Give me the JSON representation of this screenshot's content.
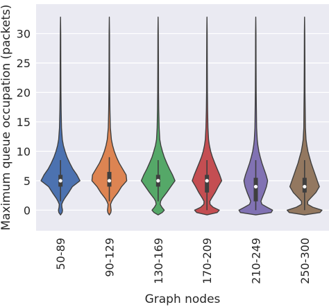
{
  "chart_data": {
    "type": "violin",
    "xlabel": "Graph nodes",
    "ylabel": "Maximum queue occupation (packets)",
    "ylim": [
      -3.5,
      35
    ],
    "y_ticks": [
      0,
      5,
      10,
      15,
      20,
      25,
      30
    ],
    "y_tick_labels": [
      "0",
      "5",
      "10",
      "15",
      "20",
      "25",
      "30"
    ],
    "grid": true,
    "background": "#eaeaf2",
    "categories": [
      "50-89",
      "90-129",
      "130-169",
      "170-209",
      "210-249",
      "250-300"
    ],
    "colors": [
      "#4c72b0",
      "#dd8452",
      "#55a868",
      "#c44e52",
      "#8172b3",
      "#937860"
    ],
    "violins": [
      {
        "category": "50-89",
        "min": -0.8,
        "max": 32.8,
        "q1": 4,
        "median": 5,
        "q3": 6,
        "whisker_low": 1.5,
        "whisker_high": 8.5,
        "density": [
          [
            -0.8,
            0.0
          ],
          [
            -0.4,
            0.08
          ],
          [
            0,
            0.1
          ],
          [
            0.5,
            0.07
          ],
          [
            1,
            0.06
          ],
          [
            1.5,
            0.12
          ],
          [
            2,
            0.2
          ],
          [
            3,
            0.4
          ],
          [
            4,
            0.58
          ],
          [
            5,
            0.95
          ],
          [
            6,
            0.8
          ],
          [
            7,
            0.6
          ],
          [
            8,
            0.45
          ],
          [
            9,
            0.32
          ],
          [
            10,
            0.22
          ],
          [
            11,
            0.14
          ],
          [
            12,
            0.09
          ],
          [
            14,
            0.05
          ],
          [
            17,
            0.03
          ],
          [
            20,
            0.02
          ],
          [
            25,
            0.015
          ],
          [
            30,
            0.01
          ],
          [
            32.8,
            0.0
          ]
        ]
      },
      {
        "category": "90-129",
        "min": -0.8,
        "max": 32.8,
        "q1": 4,
        "median": 5,
        "q3": 6.5,
        "whisker_low": 1.5,
        "whisker_high": 9,
        "density": [
          [
            -0.8,
            0.0
          ],
          [
            -0.4,
            0.07
          ],
          [
            0,
            0.09
          ],
          [
            0.5,
            0.07
          ],
          [
            1,
            0.06
          ],
          [
            1.5,
            0.12
          ],
          [
            2,
            0.2
          ],
          [
            3,
            0.42
          ],
          [
            4,
            0.6
          ],
          [
            5,
            0.85
          ],
          [
            6,
            0.82
          ],
          [
            7,
            0.65
          ],
          [
            8,
            0.48
          ],
          [
            9,
            0.35
          ],
          [
            10,
            0.24
          ],
          [
            11,
            0.16
          ],
          [
            12,
            0.1
          ],
          [
            14,
            0.05
          ],
          [
            17,
            0.03
          ],
          [
            20,
            0.02
          ],
          [
            25,
            0.015
          ],
          [
            30,
            0.01
          ],
          [
            32.8,
            0.0
          ]
        ]
      },
      {
        "category": "130-169",
        "min": -0.8,
        "max": 32.8,
        "q1": 4,
        "median": 5,
        "q3": 6,
        "whisker_low": 1.5,
        "whisker_high": 8.5,
        "density": [
          [
            -0.8,
            0.0
          ],
          [
            -0.4,
            0.2
          ],
          [
            0,
            0.3
          ],
          [
            0.5,
            0.18
          ],
          [
            1,
            0.1
          ],
          [
            1.5,
            0.12
          ],
          [
            2,
            0.2
          ],
          [
            3,
            0.42
          ],
          [
            4,
            0.62
          ],
          [
            5,
            0.82
          ],
          [
            6,
            0.7
          ],
          [
            7,
            0.55
          ],
          [
            8,
            0.42
          ],
          [
            9,
            0.3
          ],
          [
            10,
            0.21
          ],
          [
            11,
            0.13
          ],
          [
            12,
            0.08
          ],
          [
            14,
            0.05
          ],
          [
            17,
            0.03
          ],
          [
            20,
            0.02
          ],
          [
            25,
            0.015
          ],
          [
            30,
            0.01
          ],
          [
            32.8,
            0.0
          ]
        ]
      },
      {
        "category": "170-209",
        "min": -0.8,
        "max": 32.8,
        "q1": 3,
        "median": 5,
        "q3": 6,
        "whisker_low": 0,
        "whisker_high": 8.5,
        "density": [
          [
            -0.8,
            0.0
          ],
          [
            -0.4,
            0.5
          ],
          [
            0,
            0.6
          ],
          [
            0.5,
            0.3
          ],
          [
            1,
            0.15
          ],
          [
            1.5,
            0.14
          ],
          [
            2,
            0.22
          ],
          [
            3,
            0.4
          ],
          [
            4,
            0.55
          ],
          [
            5,
            0.72
          ],
          [
            6,
            0.62
          ],
          [
            7,
            0.5
          ],
          [
            8,
            0.38
          ],
          [
            9,
            0.27
          ],
          [
            10,
            0.18
          ],
          [
            11,
            0.12
          ],
          [
            12,
            0.08
          ],
          [
            14,
            0.05
          ],
          [
            17,
            0.03
          ],
          [
            20,
            0.02
          ],
          [
            25,
            0.015
          ],
          [
            30,
            0.01
          ],
          [
            32.8,
            0.0
          ]
        ]
      },
      {
        "category": "210-249",
        "min": -0.8,
        "max": 32.8,
        "q1": 1.5,
        "median": 4,
        "q3": 5.5,
        "whisker_low": 0,
        "whisker_high": 8.5,
        "density": [
          [
            -0.8,
            0.0
          ],
          [
            -0.4,
            0.75
          ],
          [
            0,
            0.82
          ],
          [
            0.5,
            0.55
          ],
          [
            1,
            0.3
          ],
          [
            1.5,
            0.25
          ],
          [
            2,
            0.3
          ],
          [
            3,
            0.42
          ],
          [
            4,
            0.52
          ],
          [
            5,
            0.58
          ],
          [
            6,
            0.5
          ],
          [
            7,
            0.4
          ],
          [
            8,
            0.3
          ],
          [
            9,
            0.22
          ],
          [
            10,
            0.15
          ],
          [
            11,
            0.1
          ],
          [
            12,
            0.07
          ],
          [
            14,
            0.04
          ],
          [
            17,
            0.03
          ],
          [
            20,
            0.02
          ],
          [
            25,
            0.015
          ],
          [
            30,
            0.01
          ],
          [
            32.8,
            0.0
          ]
        ]
      },
      {
        "category": "250-300",
        "min": -0.8,
        "max": 32.8,
        "q1": 3,
        "median": 4,
        "q3": 5.5,
        "whisker_low": 0,
        "whisker_high": 8.5,
        "density": [
          [
            -0.8,
            0.0
          ],
          [
            -0.4,
            0.75
          ],
          [
            0,
            0.85
          ],
          [
            0.5,
            0.4
          ],
          [
            1,
            0.15
          ],
          [
            1.5,
            0.15
          ],
          [
            2,
            0.28
          ],
          [
            3,
            0.55
          ],
          [
            4,
            0.72
          ],
          [
            5,
            0.62
          ],
          [
            6,
            0.52
          ],
          [
            7,
            0.42
          ],
          [
            8,
            0.32
          ],
          [
            9,
            0.24
          ],
          [
            10,
            0.16
          ],
          [
            11,
            0.11
          ],
          [
            12,
            0.07
          ],
          [
            14,
            0.04
          ],
          [
            17,
            0.03
          ],
          [
            20,
            0.02
          ],
          [
            25,
            0.015
          ],
          [
            30,
            0.01
          ],
          [
            32.8,
            0.0
          ]
        ]
      }
    ]
  }
}
